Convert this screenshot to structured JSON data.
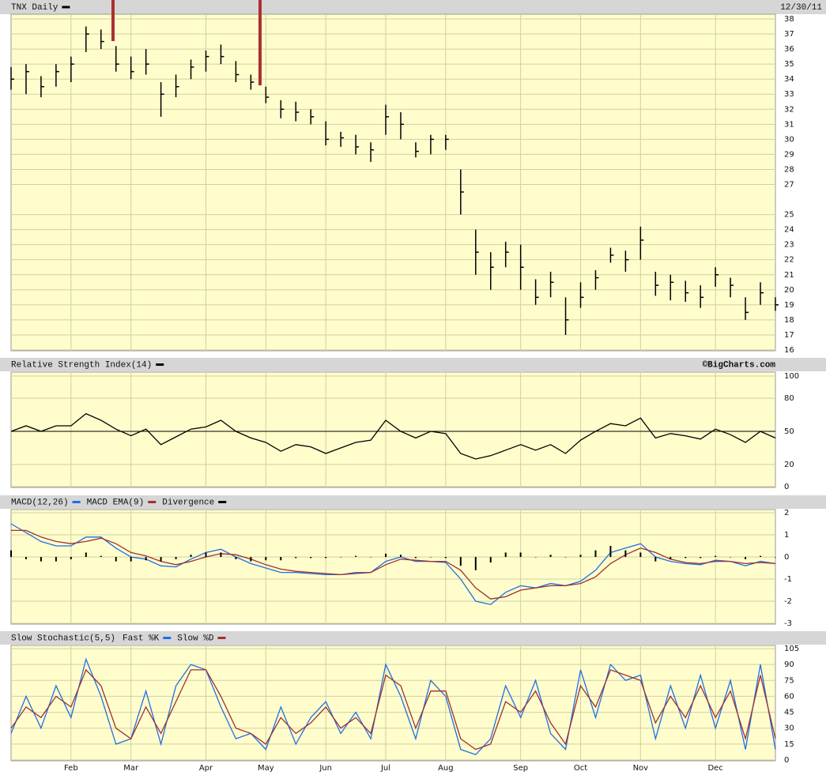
{
  "chart_data": [
    {
      "type": "hlc",
      "title": "TNX Daily",
      "date_label": "12/30/11",
      "color": "#000000",
      "grid": true,
      "ylim": [
        16,
        38
      ],
      "yticks": [
        16,
        17,
        18,
        19,
        20,
        21,
        22,
        23,
        24,
        25,
        27,
        28,
        29,
        30,
        31,
        32,
        33,
        34,
        35,
        36,
        37,
        38
      ],
      "high": [
        34.8,
        35,
        34.2,
        35,
        35.5,
        37.5,
        37.3,
        36.2,
        35.5,
        36,
        33.8,
        34.3,
        35.3,
        35.9,
        36.3,
        35.2,
        34.3,
        33.5,
        32.6,
        32.5,
        32,
        31.2,
        30.5,
        30.3,
        29.8,
        32.3,
        31.8,
        29.8,
        30.3,
        30.3,
        28,
        24,
        22.5,
        23.2,
        23,
        20.7,
        21.2,
        19.5,
        20.5,
        21.3,
        22.8,
        22.6,
        24.2,
        21.2,
        21,
        20.6,
        20.3,
        21.5,
        20.8,
        19.5,
        20.5,
        19.5
      ],
      "low": [
        33.3,
        33,
        32.8,
        33.5,
        33.8,
        35.8,
        36,
        34.5,
        34,
        34.3,
        31.5,
        32.8,
        34,
        34.5,
        35,
        33.8,
        33.3,
        32.4,
        31.4,
        31.2,
        31,
        29.6,
        29.5,
        29,
        28.5,
        30.3,
        30,
        28.8,
        29,
        29.3,
        25,
        21,
        20,
        21.5,
        20,
        19,
        19.5,
        17,
        18.8,
        20,
        21.8,
        21.2,
        22,
        19.6,
        19.3,
        19.2,
        18.8,
        20.2,
        19.5,
        18,
        19,
        18.6
      ],
      "close": [
        34,
        34.5,
        33.5,
        34.5,
        35,
        37,
        36.5,
        35,
        34.5,
        35,
        33,
        33.5,
        34.8,
        35.5,
        35.5,
        34.3,
        33.8,
        32.8,
        32,
        31.8,
        31.5,
        30,
        30.1,
        29.5,
        29.3,
        31.5,
        31,
        29.2,
        30,
        30,
        26.5,
        22.5,
        21.5,
        22.5,
        21.5,
        19.5,
        20.5,
        18,
        19.5,
        20.8,
        22.3,
        22,
        23.3,
        20.3,
        20.5,
        19.8,
        19.5,
        21,
        20.3,
        18.5,
        19.8,
        19
      ]
    },
    {
      "type": "line",
      "title": "Relative Strength Index(14)",
      "annotation": "©BigCharts.com",
      "color": "#000000",
      "grid": true,
      "ylim": [
        0,
        100
      ],
      "yticks": [
        0,
        20,
        50,
        80,
        100
      ],
      "reference_line": 50,
      "values": [
        50,
        55,
        50,
        55,
        55,
        66,
        60,
        52,
        46,
        52,
        38,
        45,
        52,
        54,
        60,
        50,
        44,
        40,
        32,
        38,
        36,
        30,
        35,
        40,
        42,
        60,
        50,
        44,
        50,
        48,
        30,
        25,
        28,
        33,
        38,
        33,
        38,
        30,
        42,
        50,
        57,
        55,
        62,
        44,
        48,
        46,
        43,
        52,
        47,
        40,
        50,
        44
      ]
    },
    {
      "type": "line",
      "grid": true,
      "ylim": [
        -3,
        2
      ],
      "yticks": [
        -3,
        -2,
        -1,
        0,
        1,
        2
      ],
      "series": [
        {
          "name": "MACD(12,26)",
          "color": "#1e6ee6",
          "values": [
            1.5,
            1.1,
            0.7,
            0.5,
            0.5,
            0.9,
            0.9,
            0.4,
            0,
            -0.1,
            -0.4,
            -0.45,
            -0.1,
            0.2,
            0.35,
            0,
            -0.3,
            -0.5,
            -0.7,
            -0.7,
            -0.75,
            -0.8,
            -0.8,
            -0.7,
            -0.7,
            -0.2,
            0,
            -0.2,
            -0.2,
            -0.25,
            -1,
            -2,
            -2.15,
            -1.6,
            -1.3,
            -1.4,
            -1.2,
            -1.3,
            -1.1,
            -0.6,
            0.2,
            0.4,
            0.6,
            0,
            -0.2,
            -0.3,
            -0.35,
            -0.15,
            -0.2,
            -0.4,
            -0.2,
            -0.3
          ]
        },
        {
          "name": "MACD EMA(9)",
          "color": "#a03030",
          "values": [
            1.2,
            1.2,
            0.9,
            0.7,
            0.6,
            0.7,
            0.85,
            0.6,
            0.2,
            0.05,
            -0.2,
            -0.35,
            -0.2,
            0,
            0.15,
            0.1,
            -0.1,
            -0.35,
            -0.55,
            -0.65,
            -0.7,
            -0.75,
            -0.8,
            -0.75,
            -0.7,
            -0.35,
            -0.1,
            -0.15,
            -0.2,
            -0.2,
            -0.6,
            -1.4,
            -1.9,
            -1.8,
            -1.5,
            -1.4,
            -1.3,
            -1.3,
            -1.2,
            -0.9,
            -0.3,
            0.1,
            0.4,
            0.2,
            -0.1,
            -0.25,
            -0.3,
            -0.2,
            -0.2,
            -0.3,
            -0.25,
            -0.3
          ]
        },
        {
          "name": "Divergence",
          "color": "#000000",
          "mark": "bar",
          "values": [
            0.3,
            -0.1,
            -0.2,
            -0.2,
            -0.1,
            0.2,
            0.05,
            -0.2,
            -0.2,
            -0.15,
            -0.2,
            -0.1,
            0.1,
            0.2,
            0.2,
            -0.1,
            -0.2,
            -0.15,
            -0.15,
            -0.05,
            -0.05,
            -0.05,
            0,
            0.05,
            0,
            0.15,
            0.1,
            -0.05,
            0,
            -0.05,
            -0.4,
            -0.6,
            -0.25,
            0.2,
            0.2,
            0,
            0.1,
            0,
            0.1,
            0.3,
            0.5,
            0.3,
            0.2,
            -0.2,
            -0.1,
            -0.05,
            -0.05,
            0.05,
            0,
            -0.1,
            0.05,
            0
          ]
        }
      ]
    },
    {
      "type": "line",
      "title": "Slow Stochastic(5,5)",
      "grid": true,
      "ylim": [
        0,
        105
      ],
      "yticks": [
        0,
        15,
        30,
        45,
        60,
        75,
        90,
        105
      ],
      "categories": [
        null,
        null,
        null,
        null,
        "Feb",
        null,
        null,
        null,
        "Mar",
        null,
        null,
        null,
        null,
        "Apr",
        null,
        null,
        null,
        "May",
        null,
        null,
        null,
        "Jun",
        null,
        null,
        null,
        "Jul",
        null,
        null,
        null,
        "Aug",
        null,
        null,
        null,
        null,
        "Sep",
        null,
        null,
        null,
        "Oct",
        null,
        null,
        null,
        "Nov",
        null,
        null,
        null,
        null,
        "Dec",
        null,
        null,
        null,
        null
      ],
      "series": [
        {
          "name": "Fast %K",
          "color": "#1e6ee6",
          "values": [
            25,
            60,
            30,
            70,
            40,
            95,
            60,
            15,
            20,
            65,
            15,
            70,
            90,
            85,
            50,
            20,
            25,
            10,
            50,
            15,
            40,
            55,
            25,
            45,
            20,
            90,
            60,
            20,
            75,
            60,
            10,
            5,
            20,
            70,
            40,
            75,
            25,
            10,
            85,
            40,
            90,
            75,
            80,
            20,
            70,
            30,
            80,
            30,
            75,
            10,
            90,
            10
          ]
        },
        {
          "name": "Slow %D",
          "color": "#a03030",
          "values": [
            30,
            50,
            40,
            60,
            50,
            85,
            70,
            30,
            20,
            50,
            25,
            55,
            85,
            85,
            60,
            30,
            25,
            15,
            40,
            25,
            35,
            50,
            30,
            40,
            25,
            80,
            70,
            30,
            65,
            65,
            20,
            10,
            15,
            55,
            45,
            65,
            35,
            15,
            70,
            50,
            85,
            80,
            75,
            35,
            60,
            40,
            70,
            40,
            65,
            20,
            80,
            20
          ]
        }
      ]
    }
  ]
}
